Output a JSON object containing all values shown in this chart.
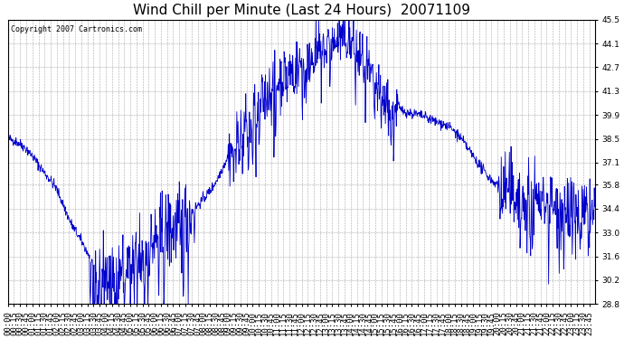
{
  "title": "Wind Chill per Minute (Last 24 Hours)  20071109",
  "copyright_text": "Copyright 2007 Cartronics.com",
  "y_ticks": [
    28.8,
    30.2,
    31.6,
    33.0,
    34.4,
    35.8,
    37.1,
    38.5,
    39.9,
    41.3,
    42.7,
    44.1,
    45.5
  ],
  "ylim": [
    28.8,
    45.5
  ],
  "line_color": "#0000cc",
  "bg_color": "#ffffff",
  "grid_color": "#aaaaaa",
  "title_fontsize": 11,
  "tick_fontsize": 6.5,
  "xlabel_rotation": 90,
  "figsize": [
    6.9,
    3.75
  ],
  "dpi": 100
}
